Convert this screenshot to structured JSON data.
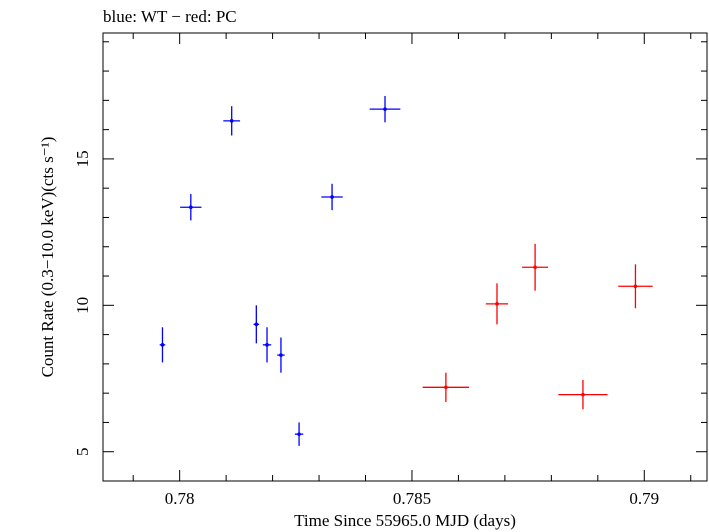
{
  "chart_data": {
    "type": "scatter",
    "title": "blue: WT − red: PC",
    "xlabel": "Time Since 55965.0 MJD (days)",
    "ylabel": "Count Rate (0.3−10.0 keV)(cts s⁻¹)",
    "xlim": [
      0.77835,
      0.79135
    ],
    "ylim": [
      4.0,
      19.3
    ],
    "x_ticks": [
      0.78,
      0.785,
      0.79
    ],
    "x_tick_labels": [
      "0.78",
      "0.785",
      "0.79"
    ],
    "y_ticks": [
      5,
      10,
      15
    ],
    "y_tick_labels": [
      "5",
      "10",
      "15"
    ],
    "grid": false,
    "series": [
      {
        "name": "WT",
        "color": "#0000ff",
        "points": [
          {
            "x": 0.77963,
            "xerr": 6e-05,
            "y": 8.65,
            "yerr": 0.6
          },
          {
            "x": 0.78024,
            "xerr": 0.00023,
            "y": 13.35,
            "yerr": 0.45
          },
          {
            "x": 0.78112,
            "xerr": 0.00018,
            "y": 16.3,
            "yerr": 0.5
          },
          {
            "x": 0.78165,
            "xerr": 6e-05,
            "y": 9.35,
            "yerr": 0.65
          },
          {
            "x": 0.78188,
            "xerr": 9e-05,
            "y": 8.65,
            "yerr": 0.6
          },
          {
            "x": 0.78218,
            "xerr": 8e-05,
            "y": 8.3,
            "yerr": 0.6
          },
          {
            "x": 0.78257,
            "xerr": 9e-05,
            "y": 5.6,
            "yerr": 0.4
          },
          {
            "x": 0.78328,
            "xerr": 0.00023,
            "y": 13.7,
            "yerr": 0.45
          },
          {
            "x": 0.78442,
            "xerr": 0.00033,
            "y": 16.7,
            "yerr": 0.45
          }
        ]
      },
      {
        "name": "PC",
        "color": "#ff0000",
        "points": [
          {
            "x": 0.78573,
            "xerr": 0.0005,
            "y": 7.2,
            "yerr": 0.5
          },
          {
            "x": 0.78683,
            "xerr": 0.00024,
            "y": 10.05,
            "yerr": 0.7
          },
          {
            "x": 0.78765,
            "xerr": 0.00028,
            "y": 11.3,
            "yerr": 0.8
          },
          {
            "x": 0.78868,
            "xerr": 0.00053,
            "y": 6.95,
            "yerr": 0.5
          },
          {
            "x": 0.78981,
            "xerr": 0.00037,
            "y": 10.65,
            "yerr": 0.75
          }
        ]
      }
    ]
  }
}
